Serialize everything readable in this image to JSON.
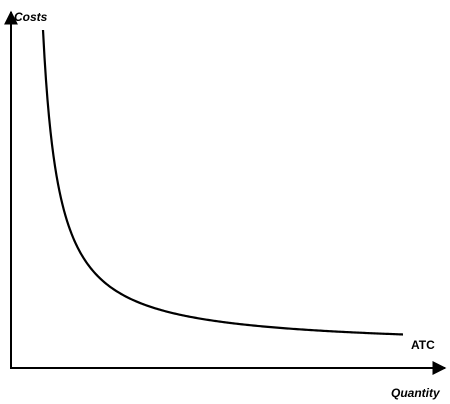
{
  "chart_data": {
    "type": "line",
    "title": "",
    "xlabel": "Quantity",
    "ylabel": "Costs",
    "grid": false,
    "ticks": false,
    "series": [
      {
        "name": "ATC",
        "shape": "decreasing convex curve approaching a horizontal asymptote",
        "stroke": "#000000"
      }
    ],
    "axis_color": "#000000"
  }
}
